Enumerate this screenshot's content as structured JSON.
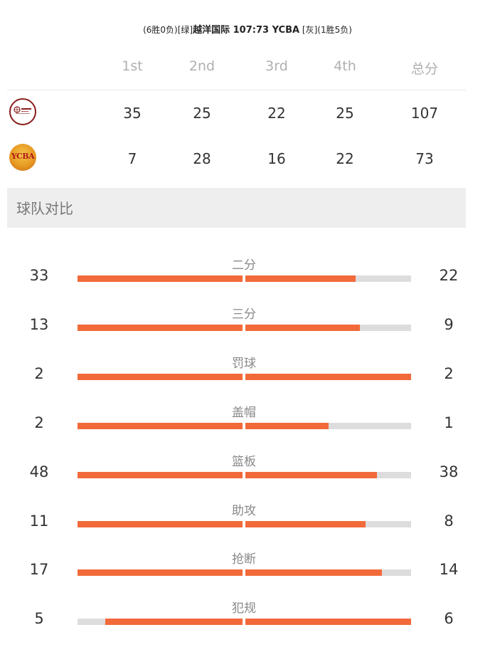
{
  "header": {
    "left_record": "(6胜0负)",
    "left_tag": "[绿]",
    "main": "越洋国际 107:73 YCBA",
    "right_tag": "[灰]",
    "right_record": "(1胜5负)"
  },
  "score_table": {
    "headers": [
      "1st",
      "2nd",
      "3rd",
      "4th",
      "总分"
    ],
    "teams": [
      {
        "logo_text": "越洋国际",
        "scores": [
          "35",
          "25",
          "22",
          "25",
          "107"
        ]
      },
      {
        "logo_text": "YCBA",
        "scores": [
          "7",
          "28",
          "16",
          "22",
          "73"
        ]
      }
    ]
  },
  "compare": {
    "title": "球队对比",
    "accent_color": "#f26a3a",
    "track_color": "#dddddd",
    "stats": [
      {
        "label": "二分",
        "left": "33",
        "right": "22",
        "left_fraction": 1.0,
        "right_fraction": 0.667
      },
      {
        "label": "三分",
        "left": "13",
        "right": "9",
        "left_fraction": 1.0,
        "right_fraction": 0.692
      },
      {
        "label": "罚球",
        "left": "2",
        "right": "2",
        "left_fraction": 1.0,
        "right_fraction": 1.0
      },
      {
        "label": "盖帽",
        "left": "2",
        "right": "1",
        "left_fraction": 1.0,
        "right_fraction": 0.5
      },
      {
        "label": "篮板",
        "left": "48",
        "right": "38",
        "left_fraction": 1.0,
        "right_fraction": 0.792
      },
      {
        "label": "助攻",
        "left": "11",
        "right": "8",
        "left_fraction": 1.0,
        "right_fraction": 0.727
      },
      {
        "label": "抢断",
        "left": "17",
        "right": "14",
        "left_fraction": 1.0,
        "right_fraction": 0.824
      },
      {
        "label": "犯规",
        "left": "5",
        "right": "6",
        "left_fraction": 0.833,
        "right_fraction": 1.0
      }
    ]
  }
}
